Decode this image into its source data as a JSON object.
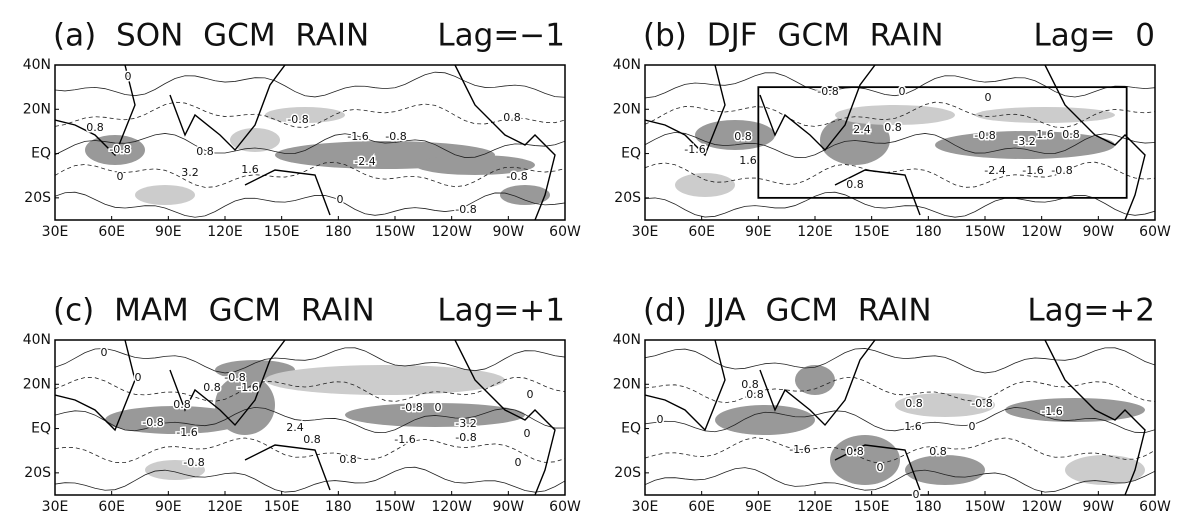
{
  "xlim": [
    30,
    300
  ],
  "ylim": [
    -30,
    40
  ],
  "lon_ticks": [
    {
      "value": 30,
      "label": "30E"
    },
    {
      "value": 60,
      "label": "60E"
    },
    {
      "value": 90,
      "label": "90E"
    },
    {
      "value": 120,
      "label": "120E"
    },
    {
      "value": 150,
      "label": "150E"
    },
    {
      "value": 180,
      "label": "180"
    },
    {
      "value": 210,
      "label": "150W"
    },
    {
      "value": 240,
      "label": "120W"
    },
    {
      "value": 270,
      "label": "90W"
    },
    {
      "value": 300,
      "label": "60W"
    }
  ],
  "lat_ticks": [
    {
      "value": 40,
      "label": "40N"
    },
    {
      "value": 20,
      "label": "20N"
    },
    {
      "value": 0,
      "label": "EQ"
    },
    {
      "value": -20,
      "label": "20S"
    }
  ],
  "panels": [
    {
      "title": "(a) SON GCM RAIN",
      "lag": "Lag=−1",
      "contour_labels": [
        "0",
        "0.8",
        "-0.8",
        "0",
        "0.8",
        "3.2",
        "1.6",
        "-0.8",
        "-1.6",
        "-0.8",
        "-2.4",
        "-0.8",
        "0.8",
        "-0.8",
        "0"
      ]
    },
    {
      "title": "(b) DJF GCM RAIN",
      "lag": "Lag= 0",
      "contour_labels": [
        "-0.8",
        "0",
        "0.8",
        "-1.6",
        "2.4",
        "0.8",
        "-0.8",
        "-3.2",
        "1.6",
        "0.8",
        "-2.4",
        "-1.6",
        "-0.8",
        "1.6",
        "0.8",
        "0"
      ]
    },
    {
      "title": "(c) MAM GCM RAIN",
      "lag": "Lag=+1",
      "contour_labels": [
        "0",
        "0",
        "-0.8",
        "-1.6",
        "0.8",
        "0.8",
        "-0.8",
        "-1.6",
        "2.4",
        "0.8",
        "-0.8",
        "0",
        "-3.2",
        "-1.6",
        "-0.8",
        "-0.8",
        "0.8",
        "0",
        "0",
        "0"
      ]
    },
    {
      "title": "(d) JJA GCM RAIN",
      "lag": "Lag=+2",
      "contour_labels": [
        "0.8",
        "0.8",
        "0.8",
        "-0.8",
        "-1.6",
        "1.6",
        "0",
        "0.8",
        "-1.6",
        "0",
        "0",
        "0.8",
        "0"
      ]
    }
  ]
}
